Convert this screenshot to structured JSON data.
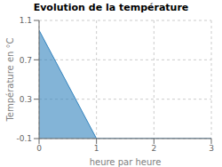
{
  "chart_data": {
    "type": "area",
    "title": "Evolution de la température",
    "x_label": "heure par heure",
    "y_label": "Température en °C",
    "x": [
      0,
      1,
      3
    ],
    "values": [
      1.0,
      -0.1,
      -0.1
    ],
    "xlim": [
      0,
      3
    ],
    "ylim": [
      -0.1,
      1.1
    ],
    "xticks": [
      0,
      1,
      2,
      3
    ],
    "yticks": [
      -0.1,
      0.3,
      0.7,
      1.1
    ],
    "grid": true
  }
}
